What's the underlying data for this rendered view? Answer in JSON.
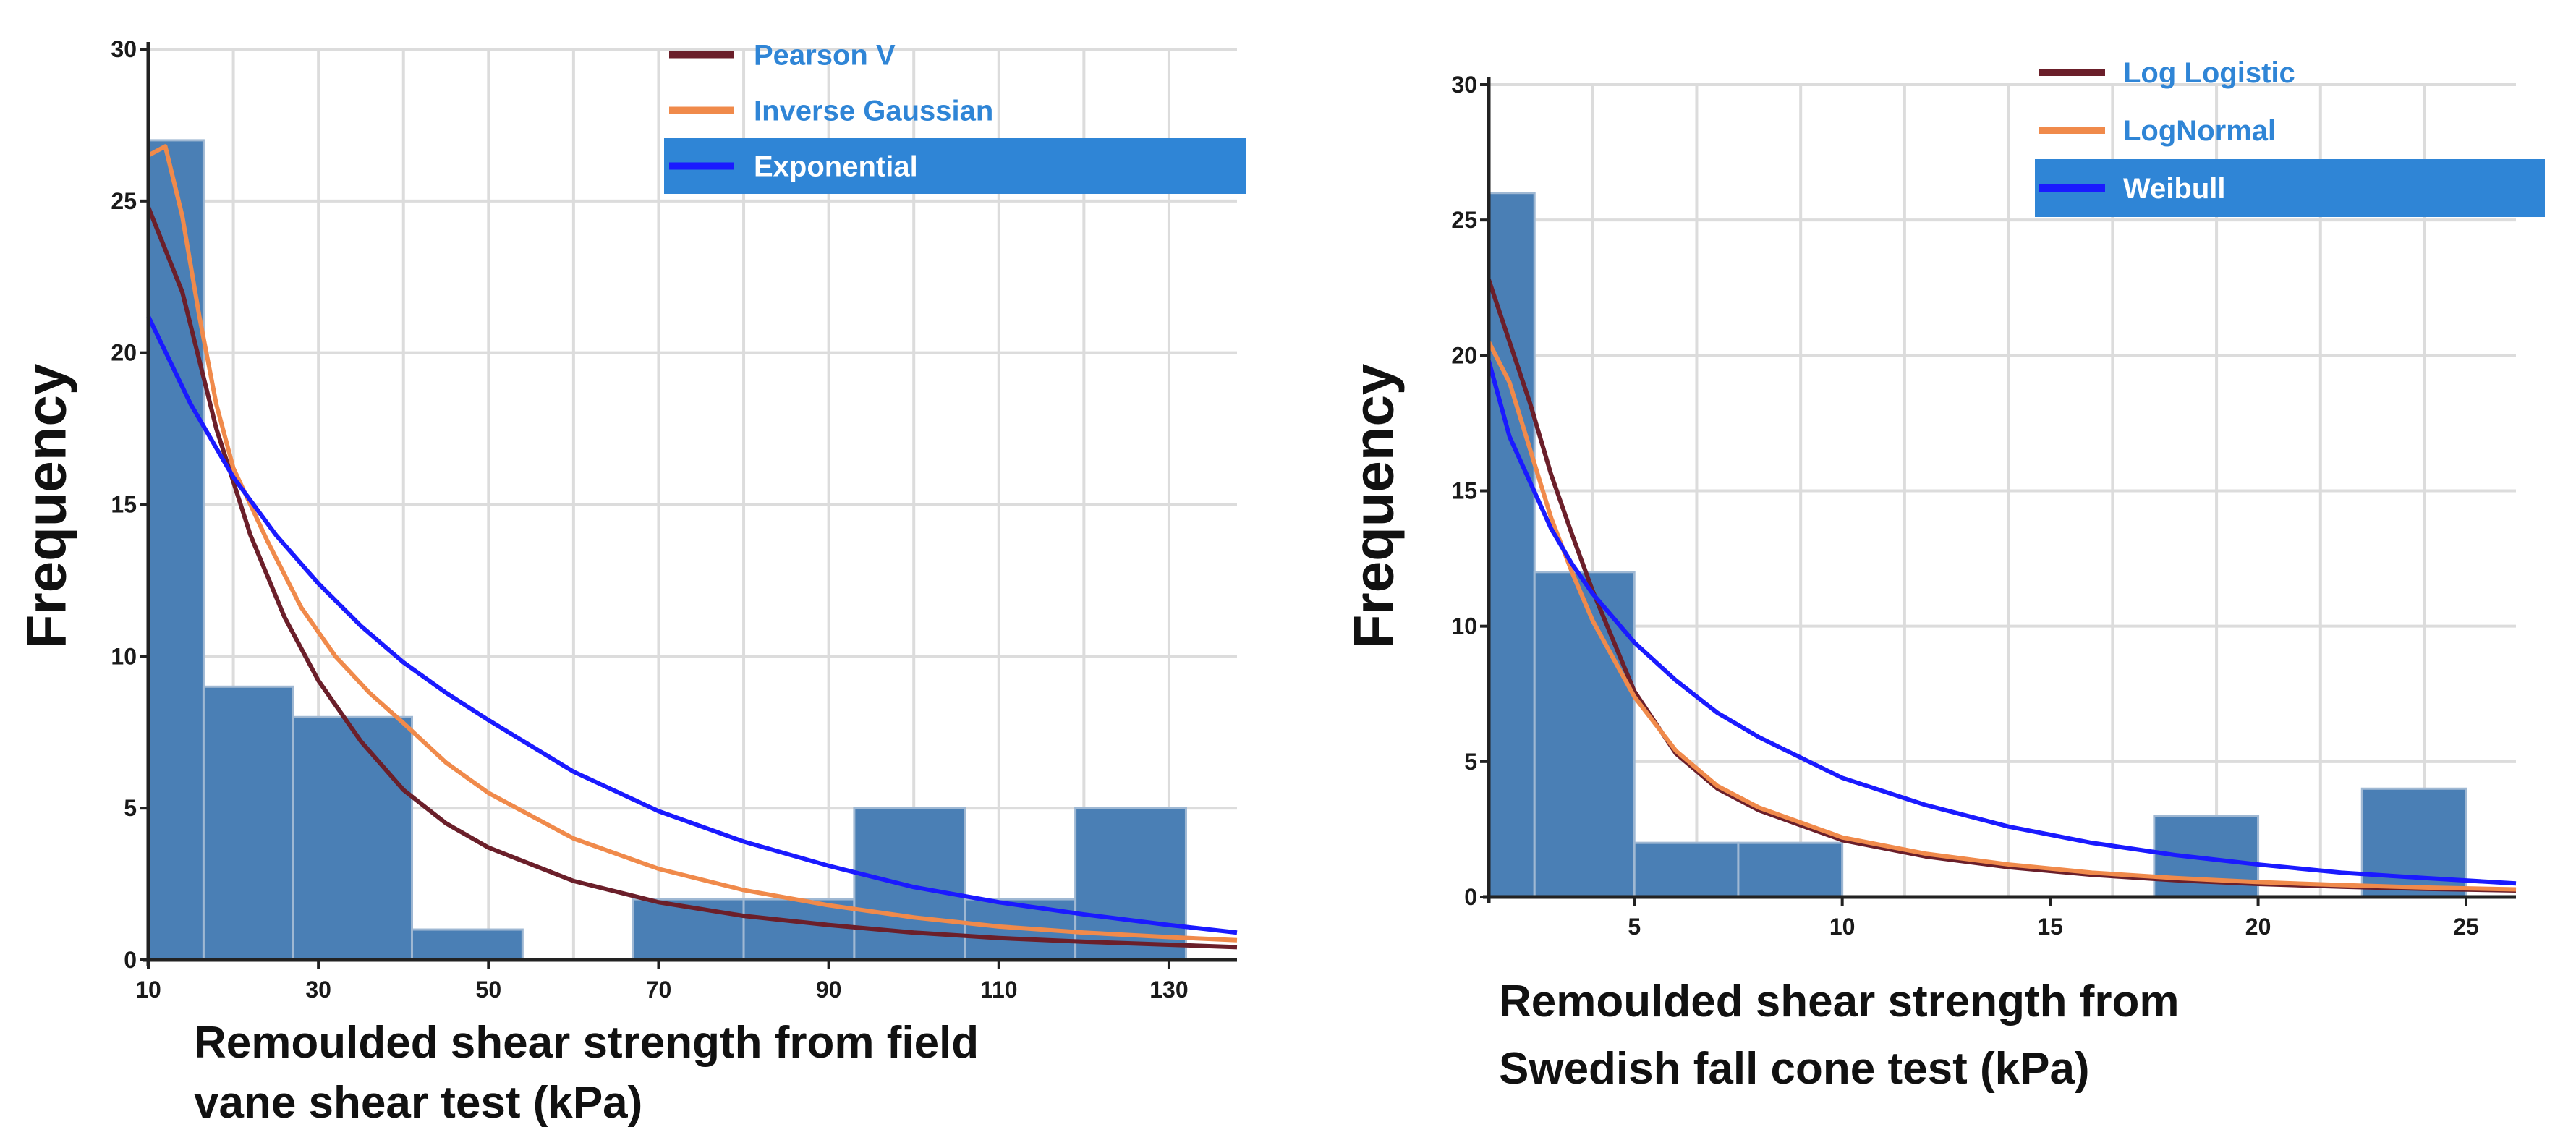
{
  "chart_data": [
    {
      "type": "bar",
      "ylabel": "Frequency",
      "xlabel_lines": [
        "Remoulded shear strength from field",
        "vane shear test (kPa)"
      ],
      "xlim": [
        10,
        138
      ],
      "ylim": [
        0,
        30
      ],
      "x_ticks": [
        10,
        30,
        50,
        70,
        90,
        110,
        130
      ],
      "y_ticks": [
        0,
        5,
        10,
        15,
        20,
        25,
        30
      ],
      "bins": [
        {
          "x0": 10,
          "x1": 16.5,
          "value": 27
        },
        {
          "x0": 16.5,
          "x1": 27,
          "value": 9
        },
        {
          "x0": 27,
          "x1": 41,
          "value": 8
        },
        {
          "x0": 41,
          "x1": 54,
          "value": 1
        },
        {
          "x0": 54,
          "x1": 67,
          "value": 0
        },
        {
          "x0": 67,
          "x1": 80,
          "value": 2
        },
        {
          "x0": 80,
          "x1": 93,
          "value": 2
        },
        {
          "x0": 93,
          "x1": 106,
          "value": 5
        },
        {
          "x0": 106,
          "x1": 119,
          "value": 2
        },
        {
          "x0": 119,
          "x1": 132,
          "value": 5
        }
      ],
      "bar_color": "#4a7fb5",
      "legend": [
        {
          "label": "Pearson V",
          "color": "#6b1f2a",
          "selected": false
        },
        {
          "label": "Inverse Gaussian",
          "color": "#f08a4b",
          "selected": false
        },
        {
          "label": "Exponential",
          "color": "#1a1aff",
          "selected": true
        }
      ],
      "series": [
        {
          "name": "Pearson V",
          "color": "#6b1f2a",
          "x": [
            10,
            14,
            18,
            22,
            26,
            30,
            35,
            40,
            45,
            50,
            60,
            70,
            80,
            90,
            100,
            110,
            120,
            130,
            138
          ],
          "y": [
            24.8,
            22,
            17.5,
            14,
            11.3,
            9.2,
            7.2,
            5.6,
            4.5,
            3.7,
            2.6,
            1.9,
            1.45,
            1.15,
            0.9,
            0.72,
            0.6,
            0.5,
            0.42
          ]
        },
        {
          "name": "Inverse Gaussian",
          "color": "#f08a4b",
          "x": [
            10,
            12,
            14,
            16,
            18,
            20,
            24,
            28,
            32,
            36,
            40,
            45,
            50,
            60,
            70,
            80,
            90,
            100,
            110,
            120,
            130,
            138
          ],
          "y": [
            26.5,
            26.8,
            24.5,
            21.2,
            18.3,
            16.2,
            13.8,
            11.6,
            10.0,
            8.8,
            7.8,
            6.5,
            5.5,
            4.0,
            3.0,
            2.3,
            1.8,
            1.4,
            1.1,
            0.9,
            0.75,
            0.65
          ]
        },
        {
          "name": "Exponential",
          "color": "#1a1aff",
          "x": [
            10,
            15,
            20,
            25,
            30,
            35,
            40,
            45,
            50,
            60,
            70,
            80,
            90,
            100,
            110,
            120,
            130,
            138
          ],
          "y": [
            21.2,
            18.3,
            15.9,
            14.0,
            12.4,
            11.0,
            9.8,
            8.8,
            7.9,
            6.2,
            4.9,
            3.9,
            3.1,
            2.4,
            1.9,
            1.5,
            1.15,
            0.9
          ]
        }
      ]
    },
    {
      "type": "bar",
      "ylabel": "Frequency",
      "xlabel_lines": [
        "Remoulded shear strength from",
        "Swedish fall cone test (kPa)"
      ],
      "xlim": [
        1.5,
        26.2
      ],
      "ylim": [
        0,
        30
      ],
      "x_ticks": [
        5,
        10,
        15,
        20,
        25
      ],
      "y_ticks": [
        0,
        5,
        10,
        15,
        20,
        25,
        30
      ],
      "bins": [
        {
          "x0": 1.5,
          "x1": 2.6,
          "value": 26
        },
        {
          "x0": 2.6,
          "x1": 5.0,
          "value": 12
        },
        {
          "x0": 5.0,
          "x1": 7.5,
          "value": 2
        },
        {
          "x0": 7.5,
          "x1": 10.0,
          "value": 2
        },
        {
          "x0": 10.0,
          "x1": 12.5,
          "value": 0
        },
        {
          "x0": 12.5,
          "x1": 15.0,
          "value": 0
        },
        {
          "x0": 15.0,
          "x1": 17.5,
          "value": 0
        },
        {
          "x0": 17.5,
          "x1": 20.0,
          "value": 3
        },
        {
          "x0": 20.0,
          "x1": 22.5,
          "value": 0
        },
        {
          "x0": 22.5,
          "x1": 25.0,
          "value": 4
        }
      ],
      "bar_color": "#4a7fb5",
      "legend": [
        {
          "label": "Log Logistic",
          "color": "#6b1f2a",
          "selected": false
        },
        {
          "label": "LogNormal",
          "color": "#f08a4b",
          "selected": false
        },
        {
          "label": "Weibull",
          "color": "#1a1aff",
          "selected": true
        }
      ],
      "series": [
        {
          "name": "Log Logistic",
          "color": "#6b1f2a",
          "x": [
            1.5,
            2.0,
            2.5,
            3.0,
            3.5,
            4.0,
            5.0,
            6.0,
            7.0,
            8.0,
            10.0,
            12.0,
            14.0,
            16.0,
            18.0,
            20.0,
            22.0,
            24.0,
            26.2
          ],
          "y": [
            22.8,
            20.5,
            18.2,
            15.6,
            13.4,
            11.3,
            7.6,
            5.3,
            4.0,
            3.2,
            2.1,
            1.5,
            1.1,
            0.82,
            0.62,
            0.48,
            0.38,
            0.3,
            0.24
          ]
        },
        {
          "name": "LogNormal",
          "color": "#f08a4b",
          "x": [
            1.5,
            2.0,
            2.5,
            3.0,
            3.5,
            4.0,
            5.0,
            6.0,
            7.0,
            8.0,
            10.0,
            12.0,
            14.0,
            16.0,
            18.0,
            20.0,
            22.0,
            24.0,
            26.2
          ],
          "y": [
            20.5,
            19.0,
            16.5,
            14.0,
            12.0,
            10.2,
            7.4,
            5.4,
            4.1,
            3.3,
            2.2,
            1.6,
            1.2,
            0.9,
            0.7,
            0.55,
            0.44,
            0.35,
            0.28
          ]
        },
        {
          "name": "Weibull",
          "color": "#1a1aff",
          "x": [
            1.5,
            2.0,
            2.5,
            3.0,
            3.5,
            4.0,
            5.0,
            6.0,
            7.0,
            8.0,
            10.0,
            12.0,
            14.0,
            16.0,
            18.0,
            20.0,
            22.0,
            24.0,
            26.2
          ],
          "y": [
            19.8,
            17.0,
            15.3,
            13.6,
            12.3,
            11.2,
            9.4,
            8.0,
            6.8,
            5.9,
            4.4,
            3.4,
            2.6,
            2.0,
            1.55,
            1.2,
            0.9,
            0.7,
            0.5
          ]
        }
      ]
    }
  ]
}
